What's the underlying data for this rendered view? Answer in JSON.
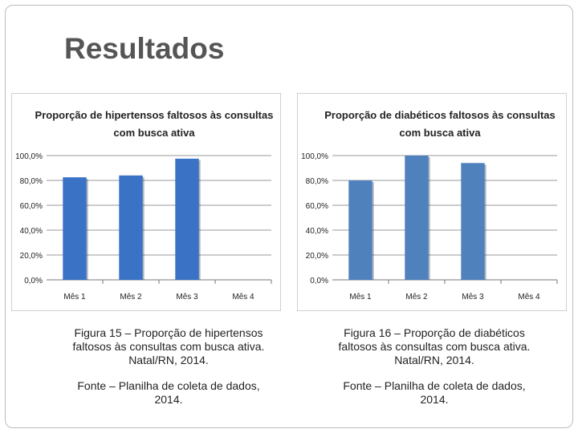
{
  "slide": {
    "title": "Resultados"
  },
  "chart_data": [
    {
      "type": "bar",
      "title": "Proporção de hipertensos faltosos às consultas com busca ativa",
      "categories": [
        "Mês 1",
        "Mês 2",
        "Mês 3",
        "Mês 4"
      ],
      "values": [
        82.5,
        84.0,
        97.5,
        null
      ],
      "yticks": [
        "0,0%",
        "20,0%",
        "40,0%",
        "60,0%",
        "80,0%",
        "100,0%"
      ],
      "ylim": [
        0,
        100
      ],
      "grid": true,
      "bar_color": "#3a72c6"
    },
    {
      "type": "bar",
      "title": "Proporção de diabéticos faltosos às consultas com busca ativa",
      "categories": [
        "Mês 1",
        "Mês 2",
        "Mês 3",
        "Mês 4"
      ],
      "values": [
        80.0,
        100.0,
        94.0,
        null
      ],
      "yticks": [
        "0,0%",
        "20,0%",
        "40,0%",
        "60,0%",
        "80,0%",
        "100,0%"
      ],
      "ylim": [
        0,
        100
      ],
      "grid": true,
      "bar_color": "#4f81bd"
    }
  ],
  "captions": {
    "left": "Figura 15 – Proporção de hipertensos faltosos às consultas com busca ativa. Natal/RN, 2014.",
    "right": "Figura 16 – Proporção de diabéticos faltosos às consultas com busca ativa. Natal/RN, 2014.",
    "source_left": "Fonte – Planilha de coleta de dados, 2014.",
    "source_right": "Fonte – Planilha de coleta de dados, 2014."
  }
}
